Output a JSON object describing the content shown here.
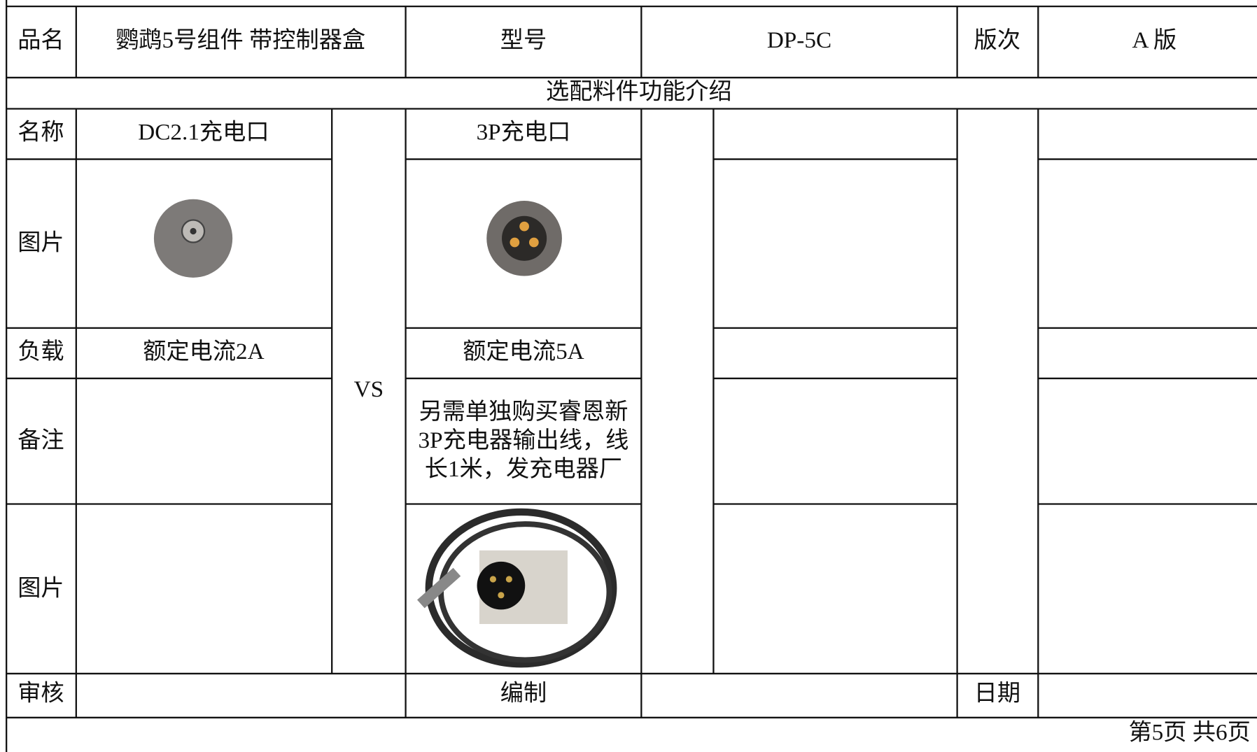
{
  "header": {
    "name_label": "品名",
    "name": "鹦鹉5号组件 带控制器盒",
    "model_label": "型号",
    "model": "DP-5C",
    "version_label": "版次",
    "version": "A 版"
  },
  "section_title": "选配料件功能介绍",
  "row_labels": [
    "名称",
    "图片",
    "负载",
    "备注",
    "图片"
  ],
  "option_a": {
    "name": "DC2.1充电口",
    "load": "额定电流2A"
  },
  "vs": "VS",
  "option_b": {
    "name": "3P充电口",
    "load": "额定电流5A",
    "note_lines": [
      "另需单独购买睿恩新",
      "3P充电器输出线，线",
      "长1米，发充电器厂"
    ]
  },
  "footer": {
    "review_label": "审核",
    "editor_label": "编制",
    "date_label": "日期"
  },
  "page_info": "第5页 共6页"
}
